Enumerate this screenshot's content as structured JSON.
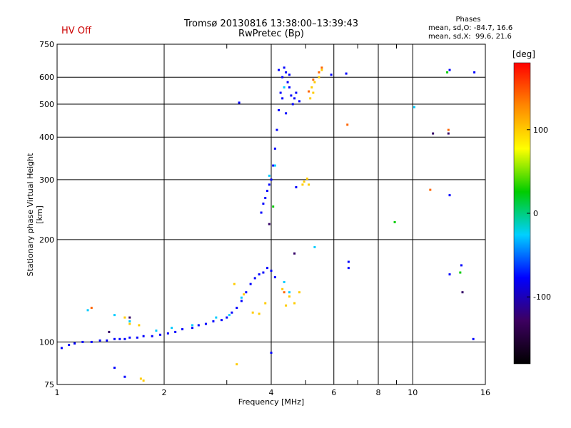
{
  "header": {
    "title_line1": "Tromsø 20130816 13:38:00–13:39:43",
    "title_line2": "RwPretec (Bp)",
    "hv_status": "HV Off"
  },
  "phases_box": {
    "title": "Phases",
    "line1": "mean, sd,O: -84.7, 16.6",
    "line2": "mean, sd,X:  99.6, 21.6"
  },
  "colorbar": {
    "unit": "[deg]",
    "ticks": [
      {
        "value": 100,
        "label": "100"
      },
      {
        "value": 0,
        "label": "0"
      },
      {
        "value": -100,
        "label": "-100"
      }
    ],
    "range": [
      -180,
      180
    ],
    "colors": [
      "#000000",
      "#3d0060",
      "#0000ff",
      "#00d0ff",
      "#00cc00",
      "#ffff00",
      "#ff8800",
      "#ff0000"
    ]
  },
  "chart_data": {
    "type": "scatter",
    "xlabel": "Frequency [MHz]",
    "ylabel": "Stationary phase Virtual Height [km]",
    "x_scale": "log",
    "y_scale": "log",
    "xlim": [
      1,
      16
    ],
    "ylim": [
      75,
      750
    ],
    "x_ticks": [
      1,
      2,
      4,
      6,
      8,
      10,
      16
    ],
    "x_tick_labels": [
      "1",
      "2",
      "4",
      "6",
      "8",
      "10",
      "16"
    ],
    "x_minor_ticks": [
      3,
      5,
      7,
      9
    ],
    "y_ticks": [
      75,
      100,
      200,
      300,
      400,
      500,
      600,
      750
    ],
    "y_tick_labels": [
      "75",
      "100",
      "200",
      "300",
      "400",
      "500",
      "600",
      "750"
    ],
    "grid": true,
    "series": [
      {
        "color": "#0000ff",
        "points": [
          [
            1.03,
            96
          ],
          [
            1.08,
            98
          ],
          [
            1.12,
            99
          ],
          [
            1.18,
            100
          ],
          [
            1.25,
            100
          ],
          [
            1.32,
            101
          ],
          [
            1.38,
            101
          ],
          [
            1.45,
            102
          ],
          [
            1.5,
            102
          ],
          [
            1.55,
            102
          ],
          [
            1.6,
            103
          ],
          [
            1.68,
            103
          ],
          [
            1.75,
            104
          ],
          [
            1.85,
            104
          ],
          [
            1.95,
            105
          ],
          [
            2.05,
            106
          ],
          [
            2.15,
            107
          ],
          [
            2.25,
            109
          ],
          [
            2.4,
            110
          ],
          [
            2.5,
            112
          ],
          [
            2.62,
            113
          ],
          [
            2.75,
            115
          ],
          [
            2.9,
            116
          ],
          [
            3.0,
            118
          ],
          [
            3.1,
            122
          ],
          [
            3.2,
            126
          ],
          [
            3.3,
            132
          ],
          [
            3.4,
            140
          ],
          [
            3.5,
            148
          ],
          [
            3.6,
            154
          ],
          [
            3.7,
            158
          ],
          [
            3.8,
            160
          ],
          [
            3.9,
            165
          ],
          [
            4.0,
            162
          ],
          [
            4.1,
            155
          ],
          [
            3.75,
            240
          ],
          [
            3.8,
            255
          ],
          [
            3.85,
            265
          ],
          [
            3.9,
            278
          ],
          [
            3.95,
            290
          ],
          [
            4.0,
            300
          ],
          [
            4.05,
            330
          ],
          [
            4.1,
            370
          ],
          [
            4.15,
            420
          ],
          [
            4.2,
            480
          ],
          [
            4.25,
            540
          ],
          [
            4.3,
            600
          ],
          [
            4.35,
            640
          ],
          [
            4.4,
            620
          ],
          [
            4.45,
            580
          ],
          [
            4.5,
            560
          ],
          [
            4.55,
            530
          ],
          [
            4.6,
            500
          ],
          [
            4.65,
            520
          ],
          [
            4.7,
            540
          ],
          [
            4.8,
            510
          ],
          [
            4.3,
            520
          ],
          [
            4.4,
            470
          ],
          [
            4.5,
            610
          ],
          [
            4.2,
            630
          ],
          [
            5.9,
            610
          ],
          [
            4.7,
            285
          ]
        ]
      },
      {
        "color": "#00ccff",
        "points": [
          [
            1.22,
            124
          ],
          [
            1.45,
            120
          ],
          [
            1.6,
            115
          ],
          [
            1.9,
            108
          ],
          [
            2.1,
            110
          ],
          [
            2.4,
            112
          ],
          [
            2.8,
            118
          ],
          [
            3.05,
            120
          ],
          [
            3.3,
            135
          ],
          [
            4.35,
            150
          ],
          [
            4.5,
            140
          ],
          [
            3.95,
            308
          ],
          [
            4.1,
            330
          ],
          [
            4.35,
            560
          ],
          [
            5.3,
            190
          ],
          [
            10.1,
            490
          ]
        ]
      },
      {
        "color": "#ffcc00",
        "points": [
          [
            1.55,
            118
          ],
          [
            1.6,
            113
          ],
          [
            1.7,
            112
          ],
          [
            1.72,
            78
          ],
          [
            1.75,
            77
          ],
          [
            3.15,
            148
          ],
          [
            3.2,
            86
          ],
          [
            3.35,
            138
          ],
          [
            3.55,
            122
          ],
          [
            3.7,
            121
          ],
          [
            3.85,
            130
          ],
          [
            4.3,
            143
          ],
          [
            4.4,
            128
          ],
          [
            4.5,
            136
          ],
          [
            4.65,
            130
          ],
          [
            4.8,
            140
          ],
          [
            4.9,
            290
          ],
          [
            4.95,
            296
          ],
          [
            5.05,
            302
          ],
          [
            5.1,
            290
          ],
          [
            5.15,
            520
          ],
          [
            5.2,
            560
          ],
          [
            5.3,
            580
          ],
          [
            5.45,
            600
          ],
          [
            5.55,
            630
          ],
          [
            5.25,
            540
          ]
        ]
      },
      {
        "color": "#ff6600",
        "points": [
          [
            5.55,
            640
          ],
          [
            5.45,
            620
          ],
          [
            5.25,
            590
          ],
          [
            5.1,
            545
          ],
          [
            6.55,
            435
          ],
          [
            12.6,
            420
          ],
          [
            11.2,
            280
          ],
          [
            1.25,
            126
          ],
          [
            4.35,
            140
          ]
        ]
      },
      {
        "color": "#0000ff",
        "points": [
          [
            3.25,
            505
          ],
          [
            6.5,
            615
          ],
          [
            12.7,
            630
          ],
          [
            14.9,
            620
          ],
          [
            12.7,
            270
          ],
          [
            6.6,
            165
          ],
          [
            6.6,
            172
          ],
          [
            12.7,
            158
          ],
          [
            13.7,
            168
          ],
          [
            14.8,
            102
          ],
          [
            4.0,
            93
          ],
          [
            1.45,
            84
          ],
          [
            1.55,
            79
          ]
        ]
      },
      {
        "color": "#330066",
        "points": [
          [
            1.6,
            118
          ],
          [
            1.4,
            107
          ],
          [
            12.6,
            410
          ],
          [
            11.4,
            410
          ],
          [
            13.8,
            140
          ],
          [
            4.65,
            182
          ],
          [
            3.95,
            222
          ]
        ]
      },
      {
        "color": "#00cc00",
        "points": [
          [
            13.6,
            160
          ],
          [
            12.5,
            620
          ],
          [
            4.05,
            250
          ],
          [
            8.9,
            225
          ]
        ]
      }
    ]
  }
}
